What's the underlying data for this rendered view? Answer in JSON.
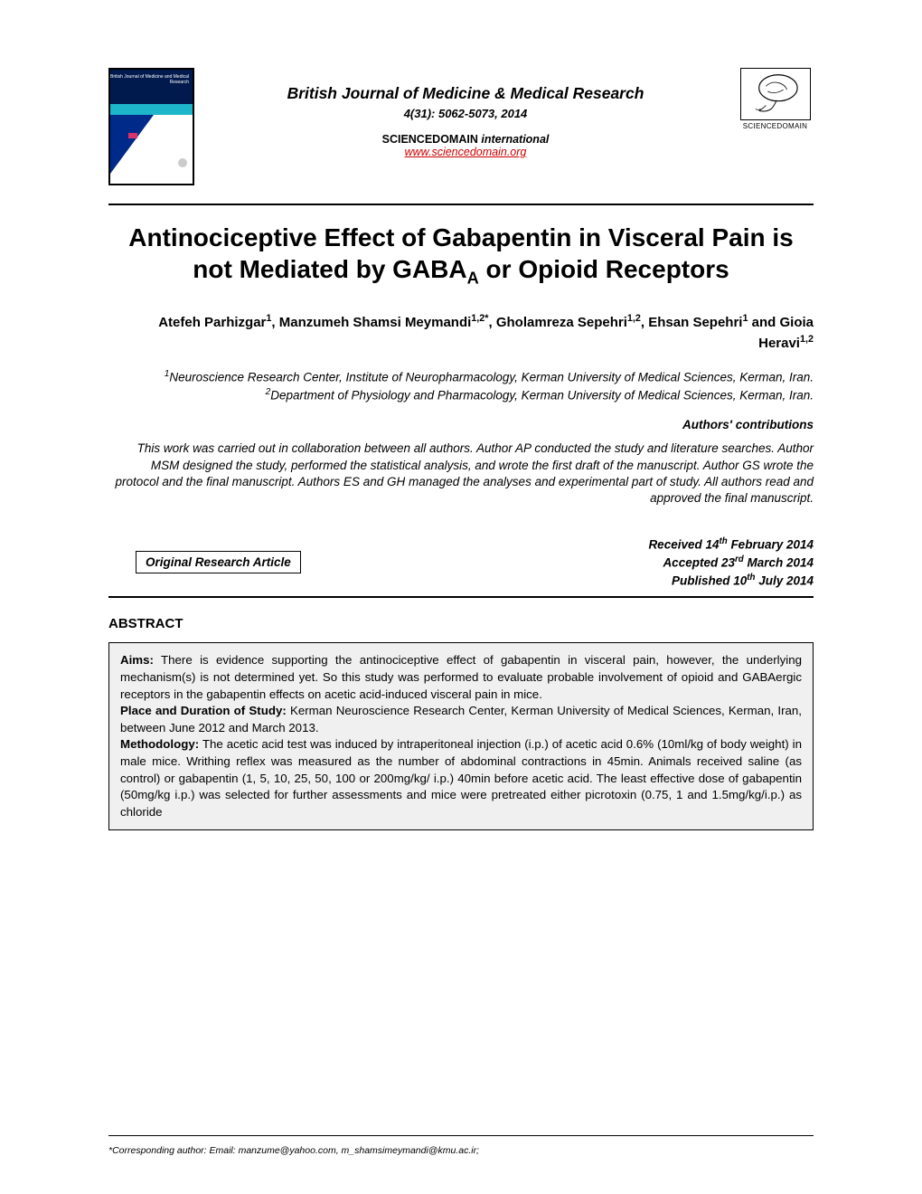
{
  "header": {
    "journal_name": "British Journal of Medicine & Medical Research",
    "issue": "4(31): 5062-5073, 2014",
    "publisher": "SCIENCEDOMAIN",
    "publisher_suffix": "international",
    "url": "www.sciencedomain.org",
    "logo_caption": "SCIENCEDOMAIN",
    "cover": {
      "title_lines": "British Journal of\nMedicine and Medical\nResearch"
    }
  },
  "title": {
    "line_pre": "Antinociceptive Effect of Gabapentin in Visceral Pain is not Mediated by GABA",
    "sub": "A",
    "line_post": " or Opioid Receptors"
  },
  "authors_html": "Atefeh Parhizgar<sup>1</sup>, Manzumeh Shamsi Meymandi<sup>1,2*</sup>, Gholamreza Sepehri<sup>1,2</sup>, Ehsan Sepehri<sup>1</sup> and Gioia Heravi<sup>1,2</sup>",
  "affiliations": [
    {
      "num": "1",
      "text": "Neuroscience Research Center, Institute of Neuropharmacology, Kerman University of Medical Sciences, Kerman, Iran."
    },
    {
      "num": "2",
      "text": "Department of Physiology and Pharmacology, Kerman University of Medical Sciences, Kerman, Iran."
    }
  ],
  "contributions": {
    "heading": "Authors' contributions",
    "body": "This work was carried out in collaboration between all authors. Author AP conducted the study and literature searches. Author MSM designed the study, performed the statistical analysis, and wrote the first draft of the manuscript. Author GS wrote the protocol and the final manuscript. Authors ES and GH managed the analyses and experimental part of study. All authors read and approved the final manuscript."
  },
  "article_type": "Original Research Article",
  "dates": {
    "received_pre": "Received 14",
    "received_sup": "th",
    "received_post": " February 2014",
    "accepted_pre": "Accepted 23",
    "accepted_sup": "rd",
    "accepted_post": " March 2014",
    "published_pre": "Published 10",
    "published_sup": "th",
    "published_post": " July 2014"
  },
  "abstract": {
    "label": "ABSTRACT",
    "sections": {
      "aims_label": "Aims:",
      "aims_text": " There is evidence supporting the antinociceptive effect of gabapentin in visceral pain, however, the underlying mechanism(s) is not determined yet. So this study was performed to evaluate probable involvement of opioid and GABAergic receptors in the gabapentin effects on acetic acid-induced visceral pain in mice.",
      "place_label": "Place and Duration of Study:",
      "place_text": " Kerman Neuroscience Research Center, Kerman University of Medical Sciences, Kerman, Iran, between June 2012 and March 2013.",
      "method_label": "Methodology:",
      "method_text": " The acetic acid test was induced by intraperitoneal injection (i.p.) of acetic acid 0.6% (10ml/kg of body weight) in male mice.  Writhing reflex was measured as the number of abdominal contractions in 45min. Animals received saline (as control) or gabapentin (1, 5, 10, 25, 50, 100 or 200mg/kg/ i.p.) 40min before acetic acid. The least effective dose of gabapentin (50mg/kg i.p.) was selected for further assessments and mice were pretreated either picrotoxin (0.75, 1 and 1.5mg/kg/i.p.) as chloride"
    }
  },
  "footer": {
    "text": "*Corresponding author: Email: manzume@yahoo.com, m_shamsimeymandi@kmu.ac.ir;"
  },
  "colors": {
    "text": "#000000",
    "link": "#cc0000",
    "abstract_bg": "#f0f0f0",
    "cover_navy": "#001a4d",
    "cover_blue": "#002a8a",
    "cover_cyan": "#1db5c9",
    "cover_pink": "#d9336c"
  },
  "fonts": {
    "title_size_pt": 21,
    "body_size_pt": 10,
    "journal_name_size_pt": 13
  }
}
